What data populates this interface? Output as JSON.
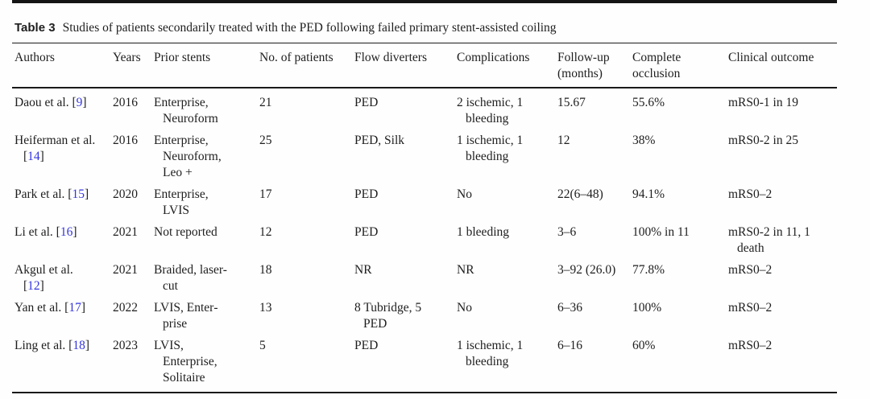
{
  "colors": {
    "reference_link": "#3535e0",
    "text": "#1e1e1e",
    "rule": "#1a1a1a"
  },
  "caption": {
    "label": "Table 3",
    "text": "Studies of patients secondarily treated with the PED following failed primary stent-assisted coiling"
  },
  "table": {
    "columns": [
      "Authors",
      "Years",
      "Prior stents",
      "No. of patients",
      "Flow diverters",
      "Complications",
      "Follow-up (months)",
      "Complete occlusion",
      "Clinical outcome"
    ],
    "rows": [
      {
        "author": {
          "name": "Daou et al.",
          "ref": "9"
        },
        "years": "2016",
        "prior_stents": "Enterprise, Neuroform",
        "patients": "21",
        "flow_diverters": "PED",
        "complications": "2 ischemic, 1 bleeding",
        "followup_months": "15.67",
        "complete_occlusion": "55.6%",
        "clinical_outcome": "mRS0-1 in 19"
      },
      {
        "author": {
          "name": "Heiferman et al.",
          "ref": "14"
        },
        "years": "2016",
        "prior_stents": "Enterprise, Neuroform, Leo +",
        "patients": "25",
        "flow_diverters": "PED, Silk",
        "complications": "1 ischemic, 1 bleeding",
        "followup_months": "12",
        "complete_occlusion": "38%",
        "clinical_outcome": "mRS0-2 in 25"
      },
      {
        "author": {
          "name": "Park et al.",
          "ref": "15"
        },
        "years": "2020",
        "prior_stents": "Enterprise, LVIS",
        "patients": "17",
        "flow_diverters": "PED",
        "complications": "No",
        "followup_months": "22(6–48)",
        "complete_occlusion": "94.1%",
        "clinical_outcome": "mRS0–2"
      },
      {
        "author": {
          "name": "Li et al.",
          "ref": "16"
        },
        "years": "2021",
        "prior_stents": "Not reported",
        "patients": "12",
        "flow_diverters": "PED",
        "complications": "1 bleeding",
        "followup_months": "3–6",
        "complete_occlusion": "100% in 11",
        "clinical_outcome": "mRS0-2 in 11, 1 death"
      },
      {
        "author": {
          "name": "Akgul et al.",
          "ref": "12"
        },
        "years": "2021",
        "prior_stents": "Braided, laser-cut",
        "patients": "18",
        "flow_diverters": "NR",
        "complications": "NR",
        "followup_months": "3–92 (26.0)",
        "complete_occlusion": "77.8%",
        "clinical_outcome": "mRS0–2"
      },
      {
        "author": {
          "name": "Yan et al.",
          "ref": "17"
        },
        "years": "2022",
        "prior_stents": "LVIS, Enter­prise",
        "patients": "13",
        "flow_diverters": "8 Tubridge, 5 PED",
        "complications": "No",
        "followup_months": "6–36",
        "complete_occlusion": "100%",
        "clinical_outcome": "mRS0–2"
      },
      {
        "author": {
          "name": "Ling et al.",
          "ref": "18"
        },
        "years": "2023",
        "prior_stents": "LVIS, Enterprise, Solitaire",
        "patients": "5",
        "flow_diverters": "PED",
        "complications": "1 ischemic, 1 bleeding",
        "followup_months": "6–16",
        "complete_occlusion": "60%",
        "clinical_outcome": "mRS0–2"
      }
    ]
  }
}
